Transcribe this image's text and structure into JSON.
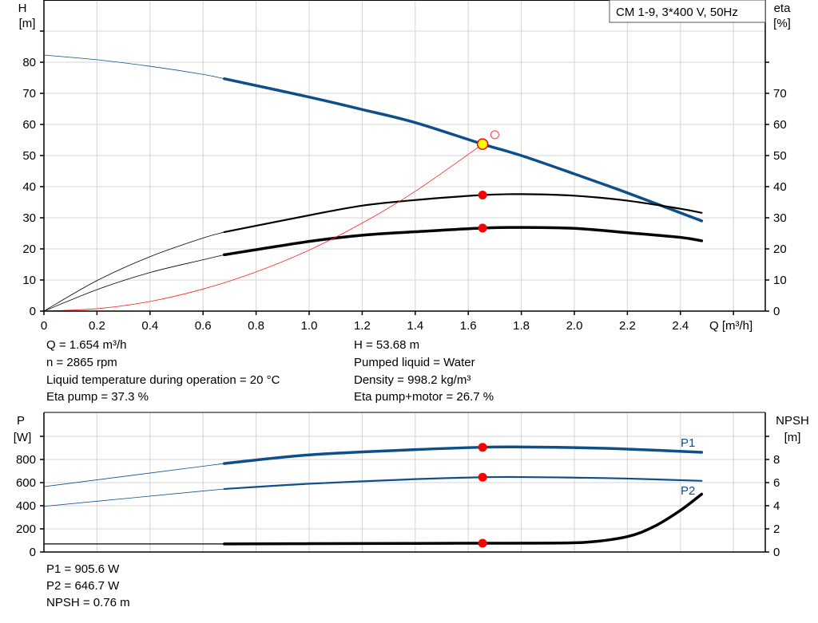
{
  "title_box": "CM 1-9, 3*400 V, 50Hz",
  "top_chart": {
    "left_axis": {
      "name": "H",
      "unit": "[m]"
    },
    "right_axis": {
      "name": "eta",
      "unit": "[%]"
    },
    "x_axis_label": "Q [m³/h]"
  },
  "bottom_chart": {
    "left_axis": {
      "name": "P",
      "unit": "[W]"
    },
    "right_axis": {
      "name": "NPSH",
      "unit": "[m]"
    },
    "series_labels": {
      "p1": "P1",
      "p2": "P2"
    }
  },
  "info_top": {
    "q": "Q = 1.654 m³/h",
    "n": "n = 2865 rpm",
    "temp": "Liquid temperature during operation = 20 °C",
    "eta_pump": "Eta pump = 37.3 %",
    "h": "H = 53.68 m",
    "liquid": "Pumped liquid = Water",
    "density": "Density = 998.2 kg/m³",
    "eta_total": "Eta pump+motor = 26.7 %"
  },
  "info_bottom": {
    "p1": "P1 = 905.6 W",
    "p2": "P2 = 646.7 W",
    "npsh": "NPSH = 0.76 m"
  },
  "chart_data": [
    {
      "type": "line",
      "xlabel": "Q [m³/h]",
      "ylabel": "H [m]",
      "y2label": "eta [%]",
      "xlim": [
        0,
        2.7
      ],
      "ylim": [
        0,
        100
      ],
      "y2lim": [
        0,
        100
      ],
      "xticks": [
        "0",
        "0.2",
        "0.4",
        "0.6",
        "0.8",
        "1.0",
        "1.2",
        "1.4",
        "1.6",
        "1.8",
        "2.0",
        "2.2",
        "2.4"
      ],
      "yticks": [
        "0",
        "10",
        "20",
        "30",
        "40",
        "50",
        "60",
        "70",
        "80"
      ],
      "y2ticks": [
        "0",
        "10",
        "20",
        "30",
        "40",
        "50",
        "60",
        "70"
      ],
      "grid": true,
      "operating_range": [
        0.68,
        2.48
      ],
      "duty_point": {
        "q": 1.654,
        "h": 53.68,
        "eta_pump": 37.3,
        "eta_total": 26.7
      },
      "requested_point": {
        "q": 1.7,
        "h": 56.7
      },
      "series": [
        {
          "key": "head",
          "color": "#0e4f8a",
          "axis": "left",
          "x": [
            0,
            0.2,
            0.4,
            0.6,
            0.68,
            1.0,
            1.2,
            1.4,
            1.654,
            1.8,
            2.0,
            2.2,
            2.48
          ],
          "y": [
            82.3,
            80.8,
            78.7,
            76.1,
            74.7,
            68.8,
            64.8,
            60.6,
            53.68,
            50.0,
            44.1,
            38.0,
            29.0
          ]
        },
        {
          "key": "eta_pump",
          "color": "#000000",
          "axis": "right",
          "x": [
            0,
            0.2,
            0.4,
            0.6,
            0.68,
            1.0,
            1.2,
            1.4,
            1.654,
            1.8,
            2.0,
            2.2,
            2.4,
            2.48
          ],
          "y": [
            0,
            9.8,
            17.5,
            23.5,
            25.4,
            30.8,
            33.9,
            35.7,
            37.3,
            37.6,
            37.1,
            35.5,
            32.9,
            31.6
          ]
        },
        {
          "key": "eta_total",
          "color": "#000000",
          "axis": "right",
          "x": [
            0,
            0.2,
            0.4,
            0.6,
            0.68,
            1.0,
            1.2,
            1.4,
            1.654,
            1.8,
            2.0,
            2.2,
            2.4,
            2.48
          ],
          "y": [
            0,
            6.9,
            12.4,
            16.5,
            18.1,
            22.4,
            24.4,
            25.5,
            26.7,
            26.9,
            26.6,
            25.2,
            23.7,
            22.6
          ]
        },
        {
          "key": "system",
          "color": "#ff2020",
          "axis": "left",
          "x": [
            0,
            0.2,
            0.4,
            0.6,
            0.8,
            1.0,
            1.2,
            1.4,
            1.654
          ],
          "y": [
            0,
            0.78,
            3.1,
            7.1,
            12.6,
            19.6,
            28.3,
            38.5,
            53.68
          ]
        }
      ]
    },
    {
      "type": "line",
      "ylabel": "P [W]",
      "y2label": "NPSH [m]",
      "xlim": [
        0,
        2.7
      ],
      "ylim": [
        0,
        1200
      ],
      "y2lim": [
        0,
        12
      ],
      "yticks": [
        "0",
        "200",
        "400",
        "600",
        "800"
      ],
      "y2ticks": [
        "0",
        "2",
        "4",
        "6",
        "8"
      ],
      "grid": true,
      "duty_point": {
        "q": 1.654,
        "p1": 905.6,
        "p2": 646.7,
        "npsh": 0.76
      },
      "series": [
        {
          "key": "p1",
          "name": "P1",
          "color": "#0e4f8a",
          "axis": "left",
          "x": [
            0,
            0.68,
            1.0,
            1.4,
            1.654,
            1.8,
            2.0,
            2.2,
            2.48
          ],
          "y": [
            565,
            765,
            840,
            885,
            905.6,
            908,
            903,
            890,
            862
          ]
        },
        {
          "key": "p2",
          "name": "P2",
          "color": "#0e4f8a",
          "axis": "left",
          "x": [
            0,
            0.68,
            1.0,
            1.4,
            1.654,
            1.8,
            2.0,
            2.2,
            2.48
          ],
          "y": [
            395,
            545,
            590,
            630,
            646.7,
            648,
            643,
            635,
            615
          ]
        },
        {
          "key": "npsh",
          "color": "#000000",
          "axis": "right",
          "x": [
            0,
            0.68,
            1.0,
            1.4,
            1.654,
            1.9,
            2.05,
            2.2,
            2.3,
            2.4,
            2.48
          ],
          "y": [
            0.7,
            0.7,
            0.72,
            0.74,
            0.76,
            0.77,
            0.85,
            1.33,
            2.2,
            3.6,
            5.0
          ]
        }
      ]
    }
  ]
}
